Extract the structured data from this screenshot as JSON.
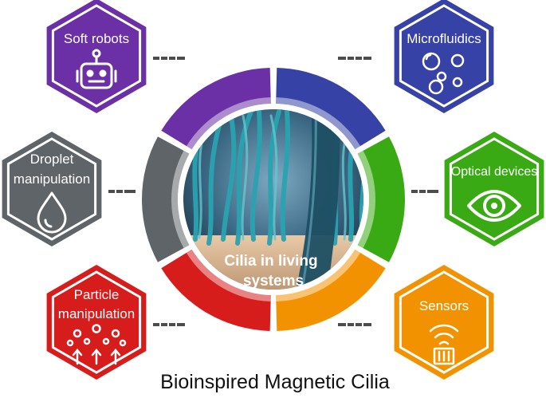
{
  "title": "Bioinspired Magnetic Cilia",
  "center": {
    "label_lines": [
      "Cilia in living",
      "systems"
    ]
  },
  "applications": [
    {
      "key": "soft-robots",
      "label_lines": [
        "Soft robots"
      ],
      "color": "#6b2fa6",
      "icon": "robot-icon"
    },
    {
      "key": "droplet",
      "label_lines": [
        "Droplet",
        "manipulation"
      ],
      "color": "#5f6468",
      "icon": "droplet-icon"
    },
    {
      "key": "particle",
      "label_lines": [
        "Particle",
        "manipulation"
      ],
      "color": "#d71c1c",
      "icon": "particles-icon"
    },
    {
      "key": "microfluidics",
      "label_lines": [
        "Microfluidics"
      ],
      "color": "#3642a5",
      "icon": "bubbles-icon"
    },
    {
      "key": "optical",
      "label_lines": [
        "Optical devices"
      ],
      "color": "#3aaa14",
      "icon": "eye-icon"
    },
    {
      "key": "sensors",
      "label_lines": [
        "Sensors"
      ],
      "color": "#f39200",
      "icon": "sensor-icon"
    }
  ]
}
